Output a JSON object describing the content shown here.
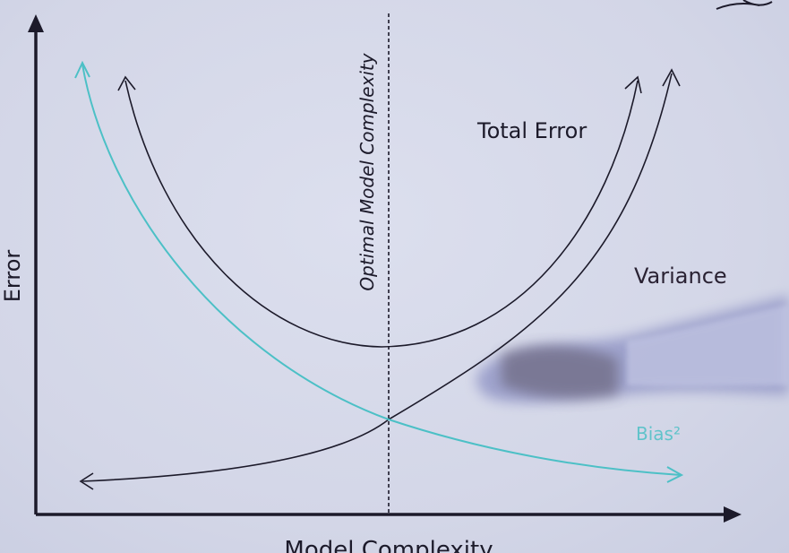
{
  "diagram": {
    "y_axis_label": "Error",
    "x_axis_label": "Model Complexity",
    "optimal_line_label": "Optimal Model Complexity",
    "total_error_label": "Total Error",
    "variance_label": "Variance",
    "bias_label": "Bias²"
  },
  "colors": {
    "background": "#d6d9e9",
    "ink": "#1c1a2a",
    "bias": "#4cc0c6",
    "hand": "#8f94c4"
  }
}
